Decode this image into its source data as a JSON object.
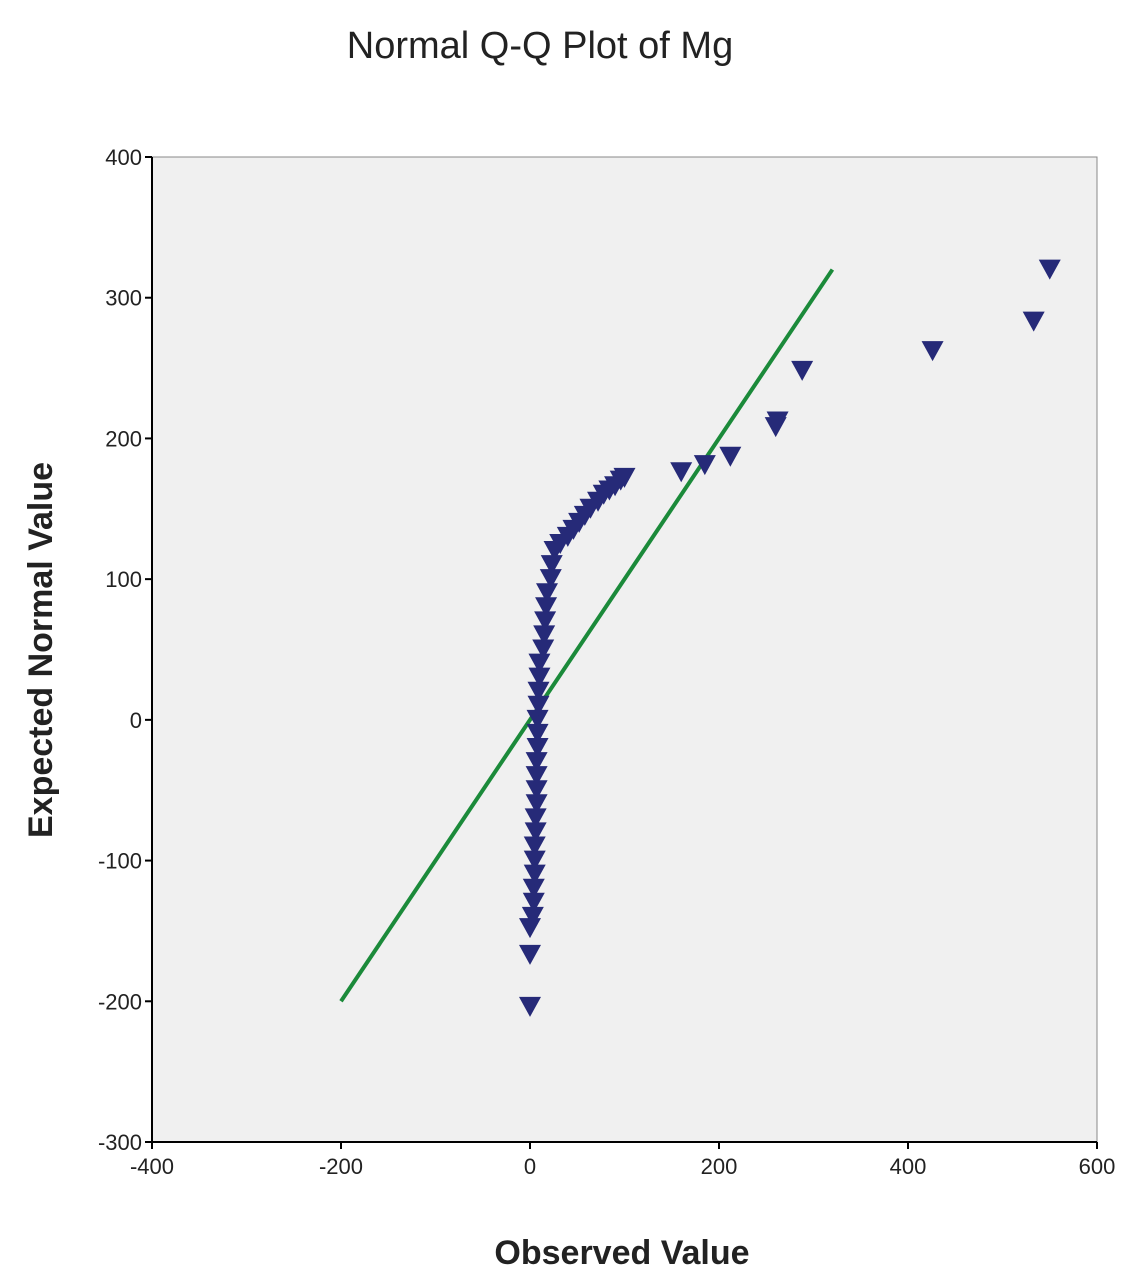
{
  "chart_data": {
    "type": "scatter",
    "title": "Normal Q-Q Plot of Mg",
    "x_label": "Observed Value",
    "y_label": "Expected Normal Value",
    "xlim": [
      -400,
      600
    ],
    "ylim": [
      -300,
      400
    ],
    "xticks": [
      -400,
      -200,
      0,
      200,
      400,
      600
    ],
    "yticks": [
      -300,
      -200,
      -100,
      0,
      100,
      200,
      300,
      400
    ],
    "series": [
      {
        "color": "#262a78",
        "x": [
          0,
          0,
          0,
          3,
          4,
          4,
          5,
          5,
          5,
          6,
          6,
          7,
          7,
          7,
          7,
          8,
          8,
          8,
          9,
          9,
          10,
          10,
          14,
          15,
          16,
          17,
          18,
          22,
          23,
          26,
          32,
          40,
          46,
          52,
          58,
          64,
          72,
          78,
          84,
          90,
          96,
          100,
          160,
          185,
          212,
          260,
          262,
          288,
          426,
          533,
          550
        ],
        "values": [
          -204,
          -167,
          -148,
          -140,
          -130,
          -120,
          -110,
          -100,
          -90,
          -80,
          -70,
          -60,
          -50,
          -40,
          -30,
          -20,
          -10,
          0,
          10,
          20,
          30,
          40,
          50,
          60,
          70,
          80,
          90,
          100,
          110,
          120,
          125,
          130,
          135,
          140,
          145,
          150,
          155,
          160,
          163,
          166,
          170,
          172,
          176,
          181,
          187,
          208,
          212,
          248,
          262,
          283,
          320
        ]
      }
    ],
    "reference_line": {
      "color": "#1b8a3a",
      "x": [
        -200,
        320
      ],
      "values": [
        -200,
        320
      ]
    }
  }
}
